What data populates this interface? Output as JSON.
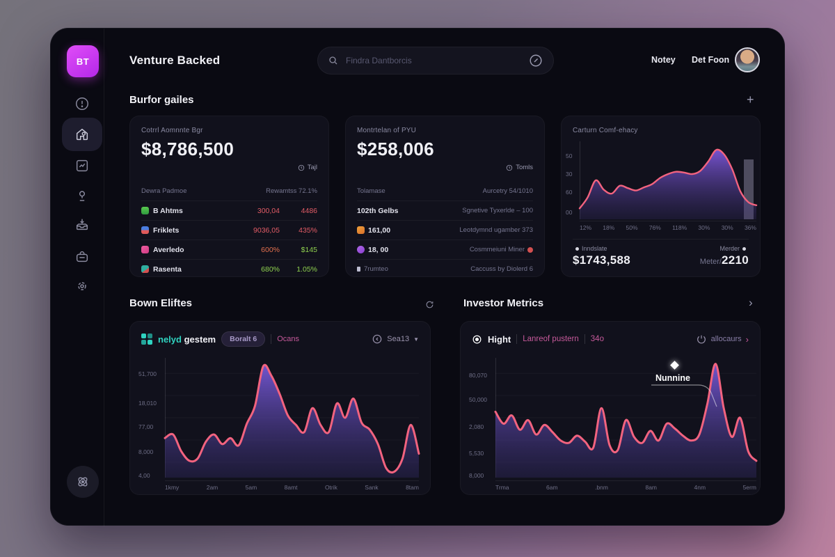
{
  "app": {
    "logo": "BT",
    "title": "Venture Backed"
  },
  "topbar": {
    "search_placeholder": "Findra Dantborcis",
    "link1": "Notey",
    "link2": "Det Foon"
  },
  "sections": {
    "overview": "Burfor gailes",
    "deals": "Bown Eliftes",
    "investors": "Investor Metrics"
  },
  "kpi1": {
    "label": "Cotrrl Aomnnte Bgr",
    "value": "$8,786,500",
    "badge": "Tajl",
    "header_left": "Dewra Padmoe",
    "header_right": "Rewamtss 72.1%",
    "rows": [
      {
        "name": "B Ahtms",
        "v1": "300,04",
        "v2": "4486"
      },
      {
        "name": "Friklets",
        "v1": "9036,05",
        "v2": "435%"
      },
      {
        "name": "Averledo",
        "v1": "600%",
        "v2": "$145"
      },
      {
        "name": "Rasenta",
        "v1": "680%",
        "v2": "1.05%"
      }
    ]
  },
  "kpi2": {
    "label": "Montrtelan of PYU",
    "value": "$258,006",
    "badge": "Tomls",
    "rows": [
      {
        "left": "Tolamase",
        "right": "Aurcetry 54/1010"
      },
      {
        "left": "102th Gelbs",
        "right": "Sgnetive Tyxerlde – 100"
      },
      {
        "left": "161,00",
        "right": "Leotdymnd ugamber 373"
      },
      {
        "left": "18, 00",
        "right": "Cosmmeiuni Miner"
      },
      {
        "left": "7rumteo",
        "right": "Caccuss by Diolerd 6"
      }
    ]
  },
  "kpi3": {
    "legend_left": "Inndslate",
    "legend_right": "Merder",
    "total_left": "$1743,588",
    "total_right_label": "Meter/",
    "total_right_value": "2210"
  },
  "deals_card": {
    "brand_accent": "nelyd",
    "brand": "gestem",
    "pill": "Boralt 6",
    "tab": "Ocans",
    "control": "Sea13"
  },
  "investors_card": {
    "tab1": "Hight",
    "tab2": "Lanreof pustern",
    "tab3": "34o",
    "control": "allocaurs",
    "tooltip": "Nunnine"
  },
  "chart_data": [
    {
      "type": "area",
      "title": "Carturn Comf-ehacy",
      "y_ticks": [
        "50",
        "30",
        "60",
        "00"
      ],
      "x_ticks": [
        "12%",
        "18%",
        "50%",
        "76%",
        "118%",
        "30%",
        "30%",
        "36%"
      ],
      "values": [
        14,
        28,
        50,
        38,
        33,
        43,
        40,
        37,
        41,
        45,
        53,
        58,
        61,
        60,
        58,
        62,
        74,
        89,
        83,
        64,
        36,
        22,
        18
      ],
      "ylim": [
        0,
        100
      ],
      "legend_position": "bottom",
      "grid": false
    },
    {
      "type": "area",
      "title": "Bown Eliftes trend",
      "y_ticks": [
        "51,700",
        "18,010",
        "77,00",
        "8,000",
        "4,00"
      ],
      "x_ticks": [
        "1kmy",
        "2am",
        "5am",
        "8amt",
        "Otrik",
        "Sank",
        "8tam"
      ],
      "values": [
        33,
        36,
        22,
        14,
        16,
        30,
        36,
        28,
        33,
        27,
        45,
        60,
        93,
        85,
        70,
        52,
        44,
        38,
        58,
        44,
        38,
        62,
        50,
        66,
        46,
        40,
        28,
        8,
        5,
        16,
        44,
        20
      ],
      "ylim": [
        0,
        100
      ],
      "grid": true
    },
    {
      "type": "area",
      "title": "Investor Metrics trend",
      "annotation": "Nunnine",
      "y_ticks": [
        "80,070",
        "50,000",
        "2,080",
        "5,530",
        "8,000"
      ],
      "x_ticks": [
        "Trma",
        "6am",
        ".bnm",
        "8am",
        "4nm",
        "5erm"
      ],
      "values": [
        55,
        45,
        52,
        40,
        48,
        36,
        44,
        38,
        31,
        29,
        35,
        30,
        25,
        58,
        27,
        23,
        48,
        34,
        29,
        39,
        31,
        45,
        41,
        35,
        31,
        36,
        62,
        95,
        58,
        34,
        50,
        22,
        14
      ],
      "ylim": [
        0,
        100
      ],
      "grid": true
    }
  ],
  "colors": {
    "accent_magenta": "#d63ef0",
    "line_pink": "#f2637f",
    "fill_purple": "#7e5ff0",
    "teal": "#2fd3c0",
    "pink_text": "#c75a9b",
    "red": "#e25c66",
    "green": "#8fd14f",
    "card_bg": "#11111c",
    "window_bg": "#0a0a12"
  },
  "icons": [
    "search",
    "slash-circle",
    "plus",
    "alert-circle",
    "home",
    "dashboard-grid",
    "map-pin",
    "inbox",
    "briefcase",
    "gear",
    "atom",
    "clock",
    "target",
    "power",
    "chevron-down",
    "chevron-right",
    "refresh",
    "diamond-marker"
  ]
}
